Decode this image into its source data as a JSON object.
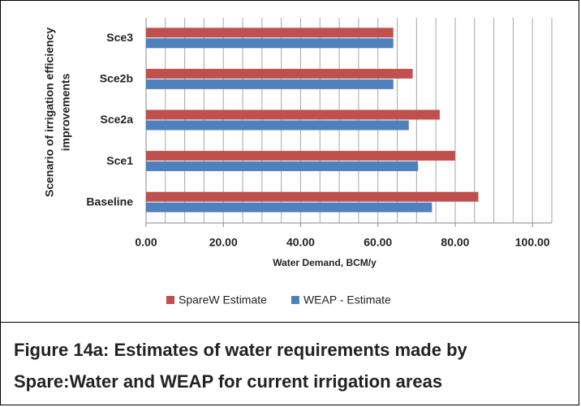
{
  "chart_data": {
    "type": "hbar",
    "x_label": "Water Demand, BCM/y",
    "y_label": [
      "Scenario of irrigation efficiency",
      "improvements"
    ],
    "categories": [
      "Baseline",
      "Sce1",
      "Sce2a",
      "Sce2b",
      "Sce3"
    ],
    "series": [
      {
        "name": "SpareW Estimate",
        "color": "#c0504d",
        "values": [
          86,
          80,
          76,
          69,
          64
        ]
      },
      {
        "name": "WEAP - Estimate",
        "color": "#4f81bd",
        "values": [
          74,
          70.4,
          68,
          64,
          64
        ]
      }
    ],
    "xlim": [
      0,
      105
    ],
    "xticks": [
      {
        "value": 0,
        "label": "0.00"
      },
      {
        "value": 20,
        "label": "20.00"
      },
      {
        "value": 40,
        "label": "40.00"
      },
      {
        "value": 60,
        "label": "60.00"
      },
      {
        "value": 80,
        "label": "80.00"
      },
      {
        "value": 100,
        "label": "100.00"
      }
    ],
    "minor_xticks": [
      5,
      10,
      15,
      25,
      30,
      35,
      45,
      50,
      55,
      65,
      70,
      75,
      85,
      90,
      95,
      105
    ],
    "grid": true,
    "legend": "bottom"
  },
  "caption": {
    "lines": [
      "Figure 14a: Estimates of water requirements made by",
      "Spare:Water and WEAP for current irrigation areas"
    ]
  }
}
